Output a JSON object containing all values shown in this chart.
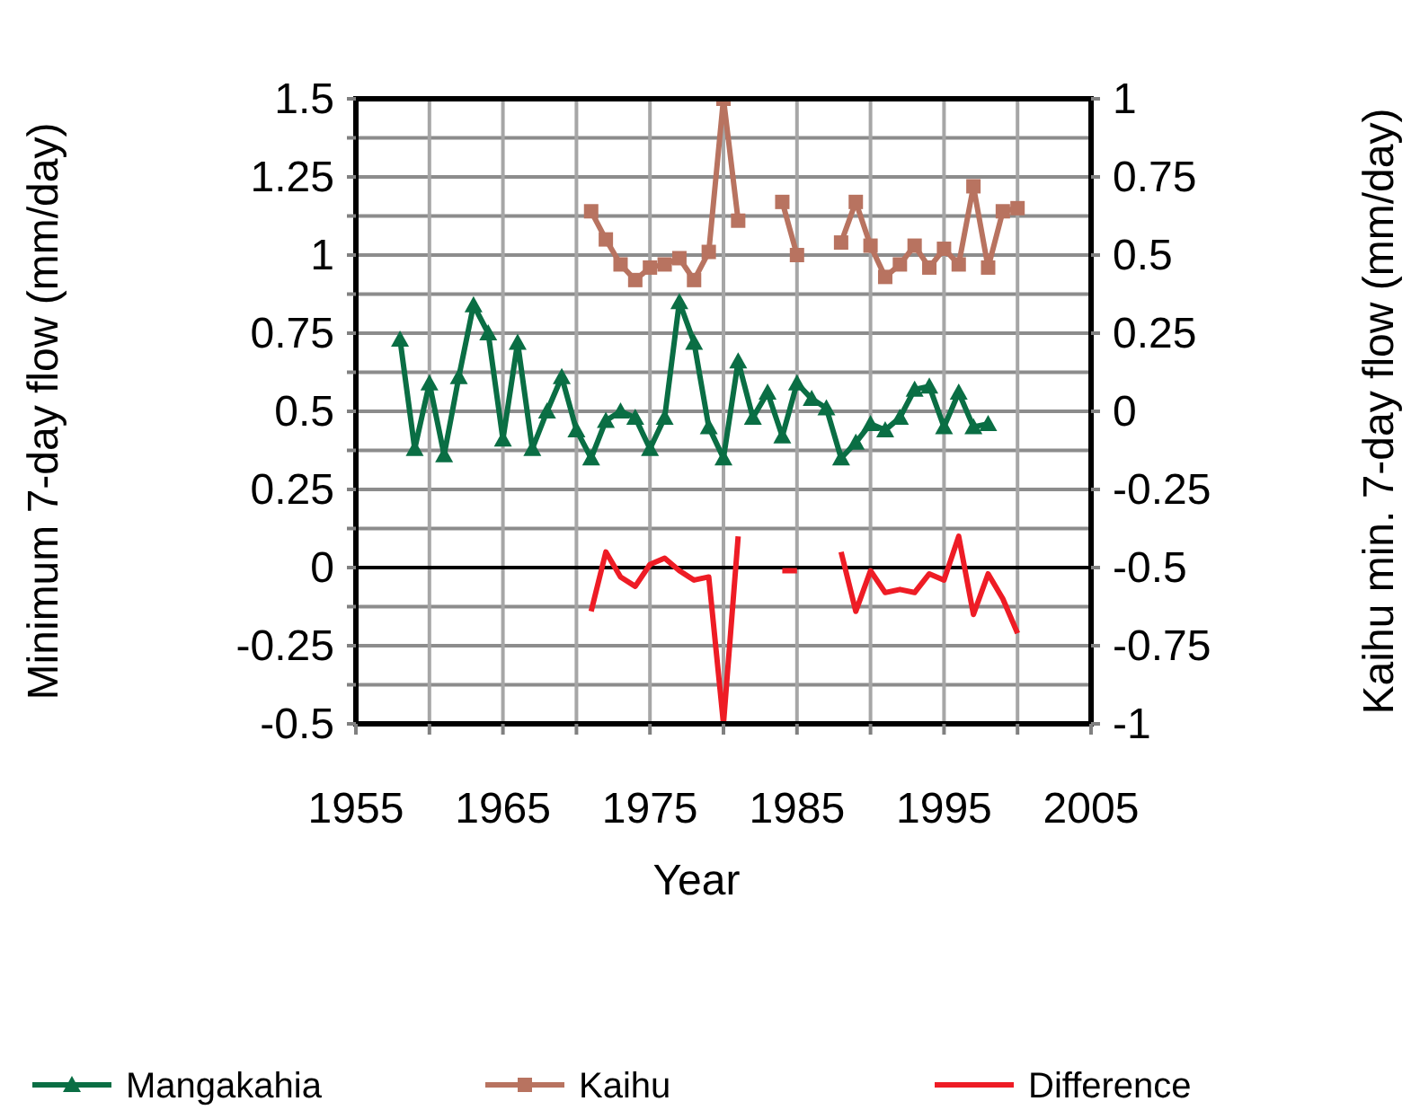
{
  "chart_data": {
    "type": "line",
    "xlabel": "Year",
    "ylabel": "Minimum 7-day flow (mm/day)",
    "y2label": "Kaihu min. 7-day flow (mm/day)",
    "xlim": [
      1955,
      2005
    ],
    "xticks": [
      1955,
      {
        "value": 1960,
        "label": null
      },
      1965,
      {
        "value": 1970,
        "label": null
      },
      1975,
      {
        "value": 1980,
        "label": null
      },
      1985,
      {
        "value": 1990,
        "label": null
      },
      1995,
      {
        "value": 2000,
        "label": null
      },
      2005
    ],
    "ylim": [
      -0.5,
      1.5
    ],
    "yticks": [
      -0.5,
      {
        "value": -0.375,
        "label": null
      },
      -0.25,
      {
        "value": -0.125,
        "label": null
      },
      0,
      {
        "value": 0.125,
        "label": null
      },
      0.25,
      {
        "value": 0.375,
        "label": null
      },
      0.5,
      {
        "value": 0.625,
        "label": null
      },
      0.75,
      {
        "value": 0.875,
        "label": null
      },
      1,
      {
        "value": 1.125,
        "label": null
      },
      1.25,
      {
        "value": 1.375,
        "label": null
      },
      1.5
    ],
    "y2lim": [
      -1,
      1
    ],
    "y2ticks": [
      -1,
      -0.75,
      -0.5,
      -0.25,
      0,
      0.25,
      0.5,
      0.75,
      1
    ],
    "grid": true,
    "legend": "bottom",
    "line_style": "solid",
    "ref_lines": [
      {
        "axis": "y",
        "value": 0,
        "color": "#000000"
      }
    ],
    "series": [
      {
        "name": "Mangakahia",
        "color": "#0a6e44",
        "marker": "triangle",
        "x": [
          1958,
          1959,
          1960,
          1961,
          1962,
          1963,
          1964,
          1965,
          1966,
          1967,
          1968,
          1969,
          1970,
          1971,
          1972,
          1973,
          1974,
          1975,
          1976,
          1977,
          1978,
          1979,
          1980,
          1981,
          1982,
          1983,
          1984,
          1985,
          1986,
          1987,
          1988,
          1989,
          1990,
          1991,
          1992,
          1993,
          1994,
          1995,
          1996,
          1997,
          1998
        ],
        "values": [
          0.73,
          0.38,
          0.59,
          0.36,
          0.61,
          0.84,
          0.75,
          0.41,
          0.72,
          0.38,
          0.5,
          0.61,
          0.44,
          0.35,
          0.47,
          0.5,
          0.48,
          0.38,
          0.48,
          0.85,
          0.72,
          0.45,
          0.35,
          0.66,
          0.48,
          0.56,
          0.42,
          0.59,
          0.54,
          0.51,
          0.35,
          0.4,
          0.46,
          0.44,
          0.48,
          0.57,
          0.58,
          0.45,
          0.56,
          0.45,
          0.46
        ]
      },
      {
        "name": "Kaihu",
        "color": "#b87360",
        "marker": "square",
        "axis": "y2",
        "x": [
          1971,
          1972,
          1973,
          1974,
          1975,
          1976,
          1977,
          1978,
          1979,
          1980,
          1981,
          1982,
          1983,
          1984,
          1985,
          1986,
          1987,
          1988,
          1989,
          1990,
          1991,
          1992,
          1993,
          1994,
          1995,
          1996,
          1997,
          1998,
          1999,
          2000
        ],
        "values": [
          0.64,
          0.55,
          0.47,
          0.42,
          0.46,
          0.47,
          0.49,
          0.42,
          0.51,
          1,
          0.61,
          null,
          null,
          0.67,
          0.5,
          null,
          null,
          0.54,
          0.67,
          0.53,
          0.43,
          0.47,
          0.53,
          0.46,
          0.52,
          0.47,
          0.72,
          0.46,
          0.64,
          0.65
        ]
      },
      {
        "name": "Difference",
        "color": "#ee1c25",
        "marker": "none",
        "x": [
          1971,
          1972,
          1973,
          1974,
          1975,
          1976,
          1977,
          1978,
          1979,
          1980,
          1981,
          1982,
          1983,
          1984,
          1985,
          1986,
          1987,
          1988,
          1989,
          1990,
          1991,
          1992,
          1993,
          1994,
          1995,
          1996,
          1997,
          1998,
          1999,
          2000
        ],
        "values": [
          -0.14,
          0.05,
          -0.03,
          -0.06,
          0.01,
          0.03,
          -0.01,
          -0.04,
          -0.03,
          -0.5,
          0.1,
          null,
          null,
          -0.01,
          -0.01,
          null,
          null,
          0.05,
          -0.14,
          -0.01,
          -0.08,
          -0.07,
          -0.08,
          -0.02,
          -0.04,
          0.1,
          -0.15,
          -0.02,
          -0.1,
          -0.21
        ]
      }
    ]
  }
}
